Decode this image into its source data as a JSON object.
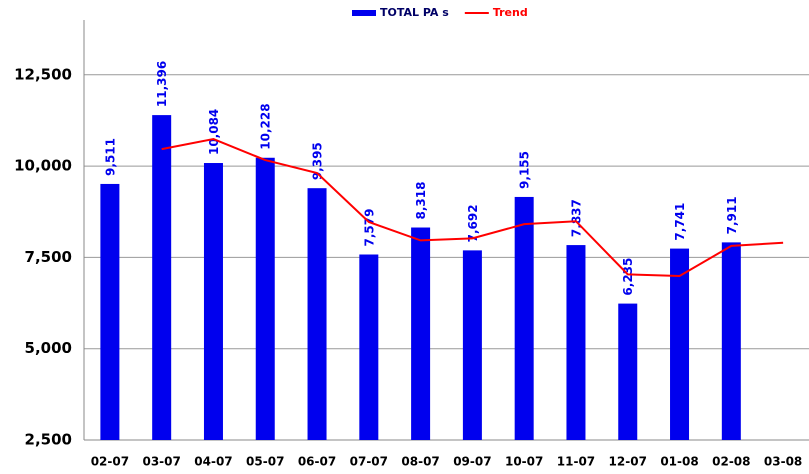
{
  "chart_data": {
    "type": "bar",
    "categories": [
      "02-07",
      "03-07",
      "04-07",
      "05-07",
      "06-07",
      "07-07",
      "08-07",
      "09-07",
      "10-07",
      "11-07",
      "12-07",
      "01-08",
      "02-08",
      "03-08"
    ],
    "series": [
      {
        "name": "TOTAL PA s",
        "type": "bar",
        "color": "#0000ee",
        "values": [
          9511,
          11396,
          10084,
          10228,
          9395,
          7579,
          8318,
          7692,
          9155,
          7837,
          6235,
          7741,
          7911,
          null
        ],
        "value_labels": [
          "9,511",
          "11,396",
          "10,084",
          "10,228",
          "9,395",
          "7,579",
          "8,318",
          "7,692",
          "9,155",
          "7,837",
          "6,235",
          "7,741",
          "7,911",
          null
        ]
      },
      {
        "name": "Trend",
        "type": "line",
        "color": "#ff0000",
        "values": [
          null,
          10465,
          10740,
          10165,
          9810,
          8470,
          7965,
          8020,
          8410,
          8490,
          7035,
          6990,
          7815,
          7900
        ]
      }
    ],
    "ylim": [
      2500,
      14000
    ],
    "yticks": [
      {
        "value": 2500,
        "label": "2,500"
      },
      {
        "value": 5000,
        "label": "5,000"
      },
      {
        "value": 7500,
        "label": "7,500"
      },
      {
        "value": 10000,
        "label": "10,000"
      },
      {
        "value": 12500,
        "label": "12,500"
      }
    ],
    "grid": true,
    "legend": "top"
  }
}
